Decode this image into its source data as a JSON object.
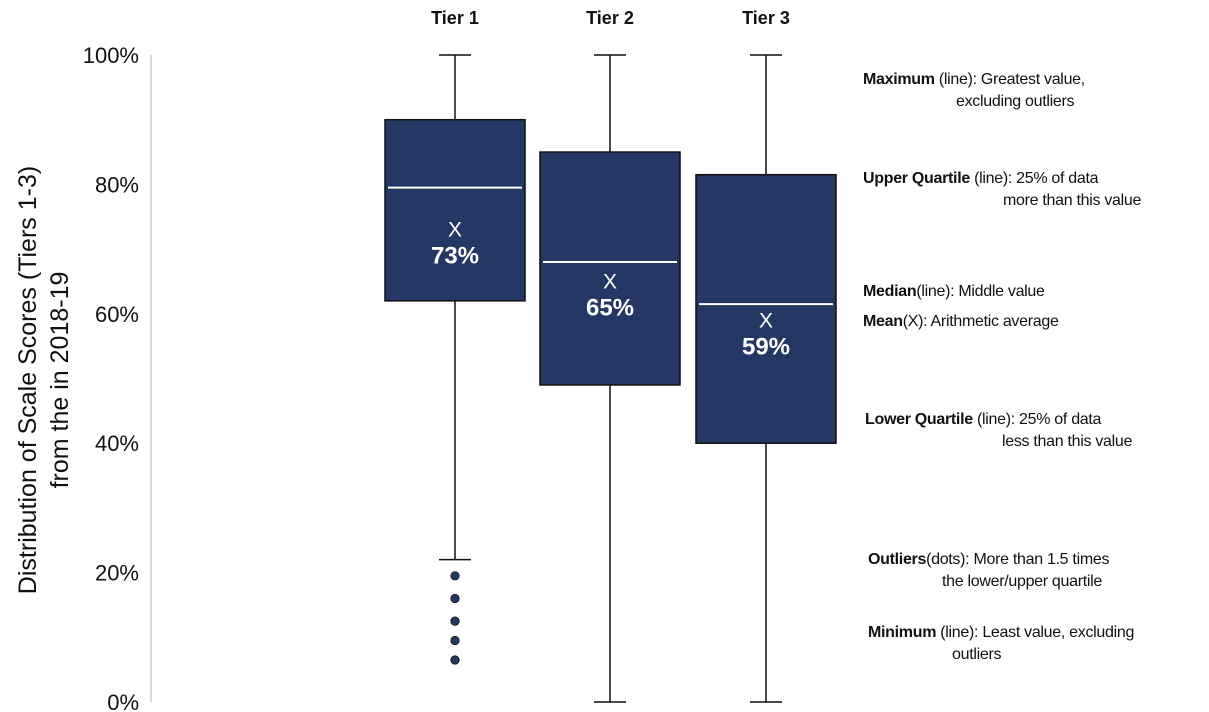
{
  "chart_data": {
    "type": "box",
    "title": "",
    "ylabel": [
      "Distribution of Scale Scores (Tiers 1-3)",
      "from the in 2018-19"
    ],
    "xlabel": "",
    "ylim": [
      0,
      100
    ],
    "yticks": [
      "0%",
      "20%",
      "40%",
      "60%",
      "80%",
      "100%"
    ],
    "categories": [
      "Tier 1",
      "Tier 2",
      "Tier 3"
    ],
    "boxes": [
      {
        "category": "Tier 1",
        "min": 22,
        "q1": 62,
        "median": 79.5,
        "q3": 90,
        "max": 100,
        "mean": 73,
        "mean_label": "73%",
        "outliers": [
          19.5,
          16,
          12.5,
          9.5,
          6.5
        ]
      },
      {
        "category": "Tier 2",
        "min": 0,
        "q1": 49,
        "median": 68,
        "q3": 85,
        "max": 100,
        "mean": 65,
        "mean_label": "65%",
        "outliers": []
      },
      {
        "category": "Tier 3",
        "min": 0,
        "q1": 40,
        "median": 61.5,
        "q3": 81.5,
        "max": 100,
        "mean": 59,
        "mean_label": "59%",
        "outliers": []
      }
    ],
    "mean_marker": "X",
    "colors": {
      "box": "#253865",
      "outlier": "#253865",
      "median": "#ffffff",
      "axis": "#cccccc"
    },
    "grid": false
  },
  "legend": {
    "maximum": {
      "term": "Maximum",
      "paren": " (line): ",
      "desc": "Greatest value,",
      "line2": "excluding outliers"
    },
    "upper_quartile": {
      "term": "Upper Quartile",
      "paren": " (line): ",
      "desc": "25% of data",
      "line2": "more than this value"
    },
    "median": {
      "term": "Median",
      "paren": "(line): ",
      "desc": "Middle value"
    },
    "mean": {
      "term": "Mean",
      "paren": "(X): ",
      "desc": "Arithmetic average"
    },
    "lower_quartile": {
      "term": "Lower Quartile",
      "paren": " (line): ",
      "desc": "25% of data",
      "line2": "less than this value"
    },
    "outliers": {
      "term": "Outliers",
      "paren": "(dots): ",
      "desc": "More than 1.5 times",
      "line2": "the lower/upper quartile"
    },
    "minimum": {
      "term": "Minimum",
      "paren": " (line): ",
      "desc": "Least value, excluding",
      "line2": "outliers"
    }
  }
}
